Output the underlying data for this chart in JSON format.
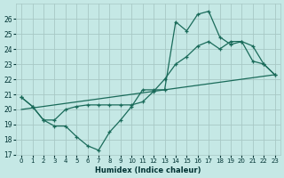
{
  "title": "",
  "xlabel": "Humidex (Indice chaleur)",
  "ylabel": "",
  "bg_color": "#c5e8e5",
  "grid_color": "#a8c8c5",
  "line_color": "#1a6b5a",
  "ylim": [
    17,
    27
  ],
  "xlim": [
    -0.5,
    23.5
  ],
  "yticks": [
    17,
    18,
    19,
    20,
    21,
    22,
    23,
    24,
    25,
    26
  ],
  "xticks": [
    0,
    1,
    2,
    3,
    4,
    5,
    6,
    7,
    8,
    9,
    10,
    11,
    12,
    13,
    14,
    15,
    16,
    17,
    18,
    19,
    20,
    21,
    22,
    23
  ],
  "series1": {
    "x": [
      0,
      1,
      2,
      3,
      4,
      5,
      6,
      7,
      8,
      9,
      10,
      11,
      12,
      13,
      14,
      15,
      16,
      17,
      18,
      19,
      20,
      21,
      22,
      23
    ],
    "y": [
      20.8,
      20.2,
      19.3,
      18.9,
      18.9,
      18.2,
      17.6,
      17.3,
      18.5,
      19.3,
      20.2,
      21.3,
      21.3,
      21.3,
      25.8,
      25.2,
      26.3,
      26.5,
      24.8,
      24.3,
      24.5,
      23.2,
      23.0,
      22.3
    ]
  },
  "series2": {
    "x": [
      0,
      1,
      2,
      3,
      4,
      5,
      6,
      7,
      8,
      9,
      10,
      11,
      12,
      13,
      14,
      15,
      16,
      17,
      18,
      19,
      20,
      21,
      22,
      23
    ],
    "y": [
      20.8,
      20.2,
      19.3,
      19.3,
      20.0,
      20.2,
      20.3,
      20.3,
      20.3,
      20.3,
      20.3,
      20.5,
      21.2,
      22.0,
      23.0,
      23.5,
      24.2,
      24.5,
      24.0,
      24.5,
      24.5,
      24.2,
      23.0,
      22.3
    ]
  },
  "series3": {
    "x": [
      0,
      23
    ],
    "y": [
      20.0,
      22.3
    ]
  }
}
